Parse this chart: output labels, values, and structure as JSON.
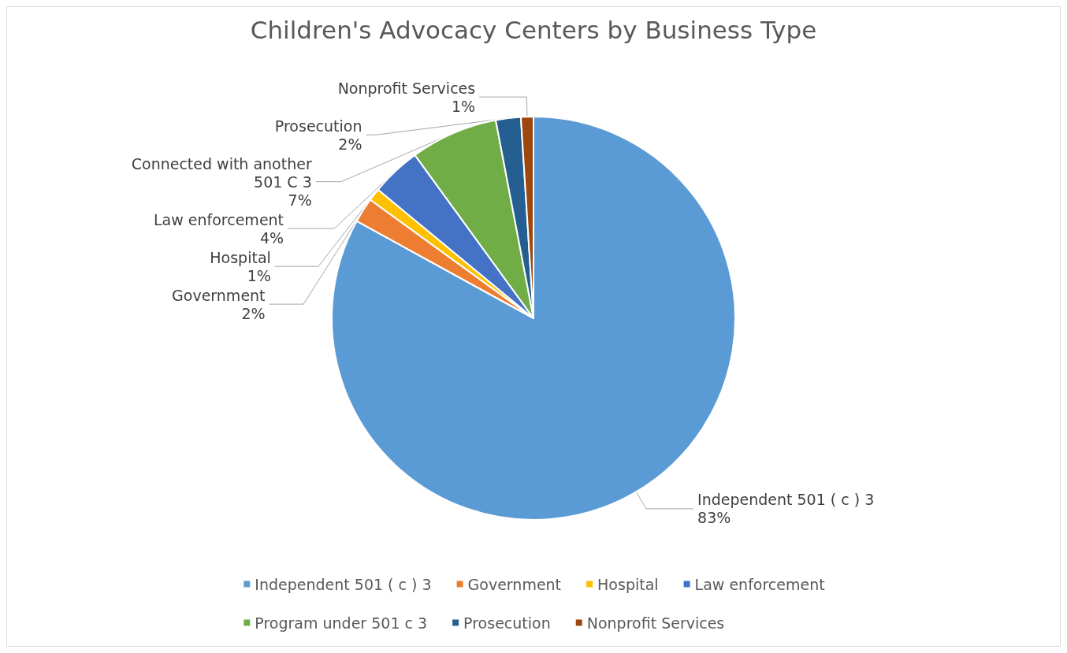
{
  "chart_data": {
    "type": "pie",
    "title": "Children's Advocacy Centers by Business Type",
    "categories": [
      "Independent 501 ( c ) 3",
      "Government",
      "Hospital",
      "Law enforcement",
      "Program under 501 c 3",
      "Prosecution",
      "Nonprofit Services"
    ],
    "values": [
      83,
      2,
      1,
      4,
      7,
      2,
      1
    ],
    "colors": [
      "#5b9bd5",
      "#ed7d31",
      "#ffc000",
      "#4472c4",
      "#70ad47",
      "#255e91",
      "#9e480e"
    ],
    "value_labels": [
      "Independent 501 ( c ) 3\n83%",
      "Government\n2%",
      "Hospital\n1%",
      "Law enforcement\n4%",
      "Connected with another\n501 C 3\n7%",
      "Prosecution\n2%",
      "Nonprofit Services\n1%"
    ],
    "legend": "bottom"
  }
}
